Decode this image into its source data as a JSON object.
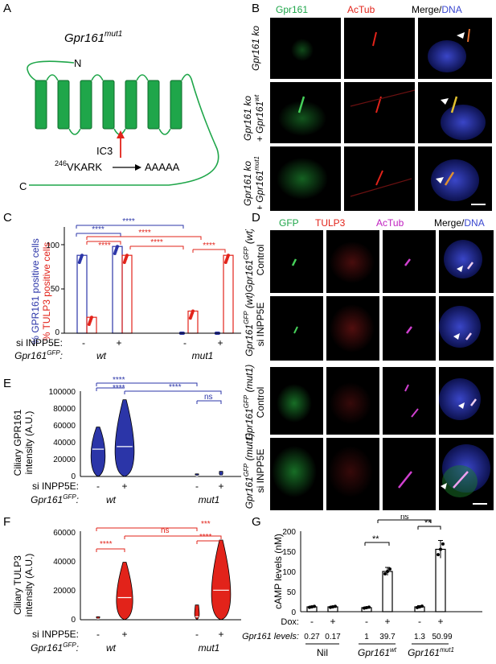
{
  "panels": {
    "A": {
      "letter": "A",
      "title_main": "Gpr161",
      "title_sup": "mut1",
      "n_label": "N",
      "c_label": "C",
      "ic3_label": "IC3",
      "mut_num": "246",
      "mut_from": "VKARK",
      "mut_to": "AAAAA",
      "colors": {
        "helix": "#1fa64a",
        "arrow": "#e2231a"
      }
    },
    "B": {
      "letter": "B",
      "channels": [
        "Gpr161",
        "AcTub",
        "Merge/",
        "DNA"
      ],
      "rows": [
        {
          "line1": "Gpr161 ko",
          "line2": "",
          "sup": ""
        },
        {
          "line1": "Gpr161 ko",
          "line2": "+ Gpr161",
          "sup": "wt"
        },
        {
          "line1": "Gpr161 ko",
          "line2": "+ Gpr161",
          "sup": "mut1"
        }
      ]
    },
    "C": {
      "letter": "C",
      "ylabel_blue": "% GPR161 positive cells",
      "ylabel_red": "% TULP3 positive cells",
      "yticks": [
        "0",
        "50",
        "100"
      ],
      "si_label": "si INPP5E:",
      "gpr_label": "Gpr161",
      "gpr_sup": "GFP",
      "si_values": [
        "-",
        "+",
        "-",
        "+"
      ],
      "groups": [
        "wt",
        "mut1"
      ],
      "sig": [
        "****",
        "****",
        "****",
        "****",
        "****",
        "****"
      ],
      "chart_data": {
        "type": "bar",
        "categories": [
          "wt -",
          "wt +",
          "mut1 -",
          "mut1 +"
        ],
        "ylim": [
          0,
          110
        ],
        "series": [
          {
            "name": "% GPR161 positive cells",
            "values": [
              88,
              98,
              0,
              0
            ],
            "color": "#2b35a8"
          },
          {
            "name": "% TULP3 positive cells",
            "values": [
              18,
              88,
              25,
              88
            ],
            "color": "#e2231a"
          }
        ]
      }
    },
    "D": {
      "letter": "D",
      "channels": [
        "GFP",
        "TULP3",
        "AcTub",
        "Merge/",
        "DNA"
      ],
      "rows": [
        {
          "line1": "Gpr161",
          "sup": "GFP",
          "tail": "(wt)",
          "line2": "Control"
        },
        {
          "line1": "Gpr161",
          "sup": "GFP",
          "tail": "(wt)",
          "line2": "si INPP5E"
        },
        {
          "line1": "Gpr161",
          "sup": "GFP",
          "tail": "(mut1)",
          "line2": "Control"
        },
        {
          "line1": "Gpr161",
          "sup": "GFP",
          "tail": "(mut1)",
          "line2": "si INPP5E"
        }
      ]
    },
    "E": {
      "letter": "E",
      "ylabel_1": "Ciliary GPR161",
      "ylabel_2": "intensity (A.U.)",
      "yticks": [
        "0",
        "20000",
        "40000",
        "60000",
        "80000",
        "100000"
      ],
      "si_label": "si INPP5E:",
      "gpr_label": "Gpr161",
      "gpr_sup": "GFP",
      "si_values": [
        "-",
        "+",
        "-",
        "+"
      ],
      "groups": [
        "wt",
        "mut1"
      ],
      "sig": [
        "****",
        "****",
        "ns",
        "****"
      ],
      "chart_data": {
        "type": "violin",
        "categories": [
          "wt -",
          "wt +",
          "mut1 -",
          "mut1 +"
        ],
        "ylim": [
          0,
          100000
        ],
        "medians": [
          32000,
          35000,
          500,
          800
        ],
        "max": [
          58000,
          90000,
          3000,
          6000
        ],
        "color": "#2b35a8"
      }
    },
    "F": {
      "letter": "F",
      "ylabel_1": "Ciliary TULP3",
      "ylabel_2": "intensity (A.U.)",
      "yticks": [
        "0",
        "20000",
        "40000",
        "60000"
      ],
      "si_label": "si INPP5E:",
      "gpr_label": "Gpr161",
      "gpr_sup": "GFP",
      "si_values": [
        "-",
        "+",
        "-",
        "+"
      ],
      "groups": [
        "wt",
        "mut1"
      ],
      "sig": [
        "****",
        "ns",
        "***",
        "****"
      ],
      "chart_data": {
        "type": "violin",
        "categories": [
          "wt -",
          "wt +",
          "mut1 -",
          "mut1 +"
        ],
        "ylim": [
          0,
          60000
        ],
        "medians": [
          500,
          15000,
          2000,
          20000
        ],
        "max": [
          2000,
          39000,
          10000,
          54000
        ],
        "color": "#e2231a"
      }
    },
    "G": {
      "letter": "G",
      "ylabel": "cAMP levels (nM)",
      "yticks": [
        "0",
        "50",
        "100",
        "150",
        "200"
      ],
      "dox_label": "Dox:",
      "dox_values": [
        "-",
        "+",
        "-",
        "+",
        "-",
        "+"
      ],
      "levels_label": "Gpr161 levels:",
      "levels": [
        "0.27",
        "0.17",
        "1",
        "39.7",
        "1.3",
        "50.99"
      ],
      "groups": [
        {
          "name": "Nil",
          "sup": ""
        },
        {
          "name": "Gpr161",
          "sup": "wt"
        },
        {
          "name": "Gpr161",
          "sup": "mut1"
        }
      ],
      "sig": [
        "**",
        "**",
        "ns"
      ],
      "chart_data": {
        "type": "bar",
        "categories": [
          "Nil -",
          "Nil +",
          "wt -",
          "wt +",
          "mut1 -",
          "mut1 +"
        ],
        "values": [
          12,
          12,
          10,
          100,
          12,
          155
        ],
        "errors": [
          2,
          2,
          2,
          10,
          3,
          22
        ],
        "ylim": [
          0,
          200
        ]
      }
    }
  }
}
